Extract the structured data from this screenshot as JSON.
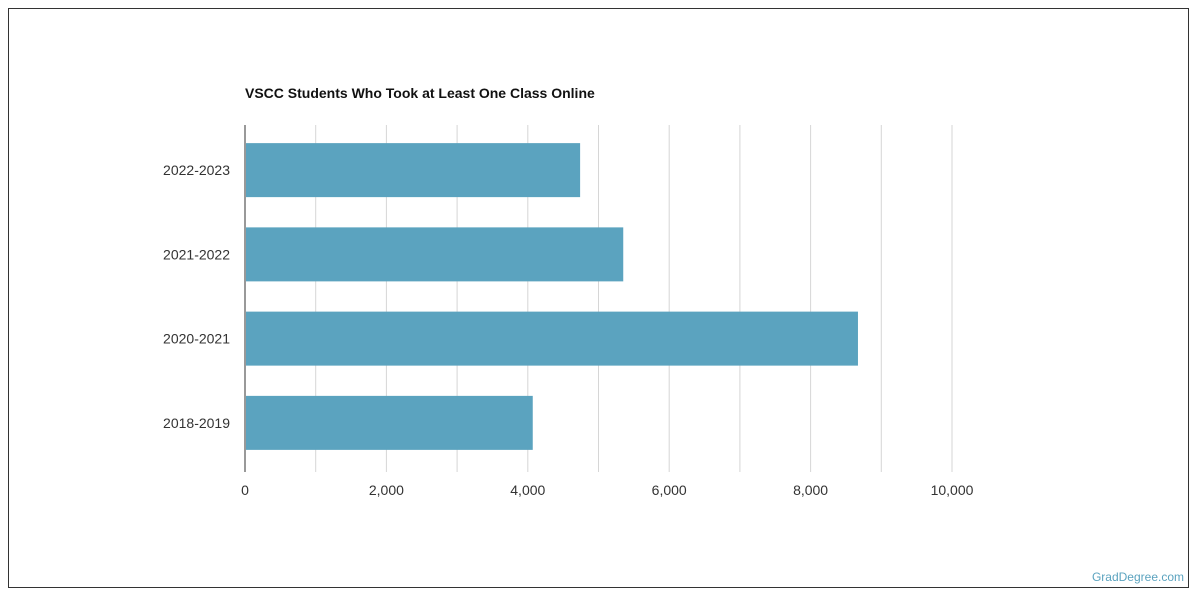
{
  "chart_data": {
    "type": "bar",
    "orientation": "horizontal",
    "title": "VSCC Students Who Took at Least One Class Online",
    "categories": [
      "2022-2023",
      "2021-2022",
      "2020-2021",
      "2018-2019"
    ],
    "values": [
      4740,
      5350,
      8670,
      4070
    ],
    "xlim": [
      0,
      10000
    ],
    "xticks": [
      0,
      2000,
      4000,
      6000,
      8000,
      10000
    ],
    "xtick_labels": [
      "0",
      "2,000",
      "4,000",
      "6,000",
      "8,000",
      "10,000"
    ],
    "xlabel": "",
    "ylabel": "",
    "grid": true,
    "bar_color": "#5ba3bf"
  },
  "source_label": "GradDegree.com"
}
